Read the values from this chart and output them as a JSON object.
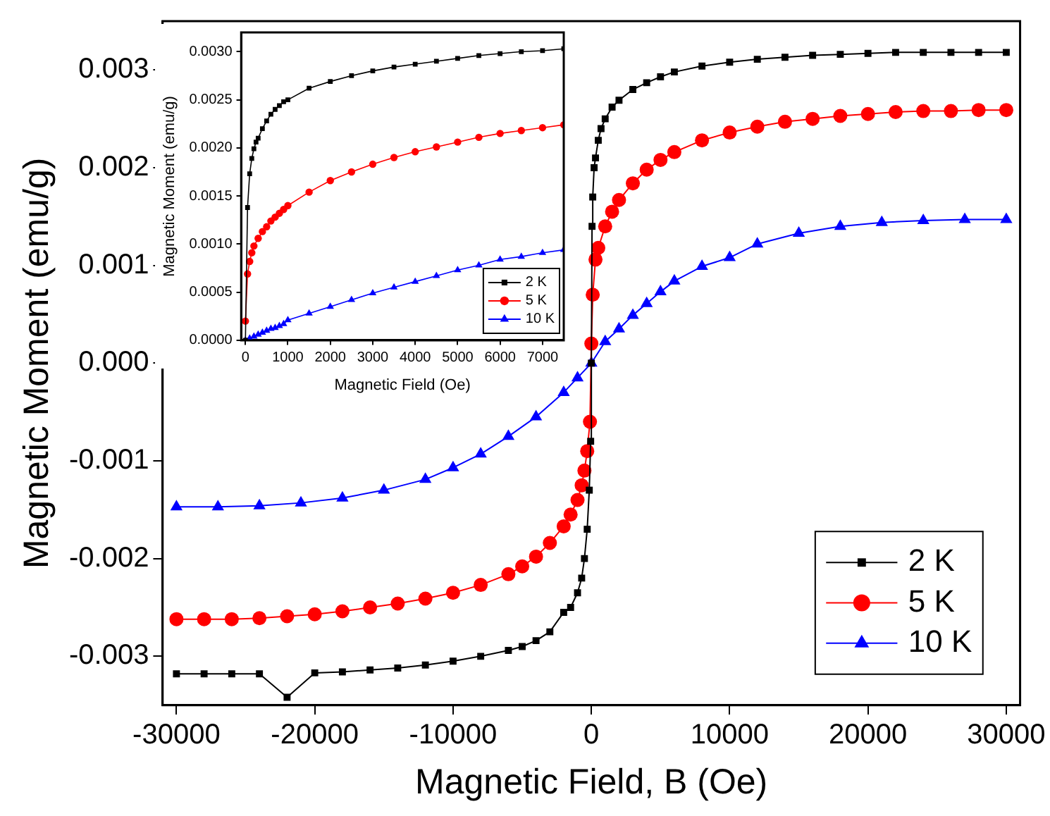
{
  "chart_data": [
    {
      "type": "line",
      "xlabel": "Magnetic Field, B (Oe)",
      "ylabel": "Magnetic Moment (emu/g)",
      "xlim": [
        -31000,
        31000
      ],
      "ylim": [
        -0.0035,
        0.0035
      ],
      "xticks": [
        -30000,
        -20000,
        -10000,
        0,
        10000,
        20000,
        30000
      ],
      "yticks": [
        {
          "value": -0.003,
          "label": "-0.003"
        },
        {
          "value": -0.002,
          "label": "-0.002"
        },
        {
          "value": -0.001,
          "label": "-0.001"
        },
        {
          "value": 0,
          "label": "0.000"
        },
        {
          "value": 0.001,
          "label": "0.001"
        },
        {
          "value": 0.002,
          "label": "0.002"
        },
        {
          "value": 0.003,
          "label": "0.003"
        }
      ],
      "grid": false,
      "legend": "bottom right",
      "line_style": "solid",
      "series": [
        {
          "name": "2 K",
          "color": "#000000",
          "marker": "square",
          "x": [
            -30000,
            -28000,
            -26000,
            -24000,
            -22000,
            -20000,
            -18000,
            -16000,
            -14000,
            -12000,
            -10000,
            -8000,
            -6000,
            -5000,
            -4000,
            -3000,
            -2000,
            -1500,
            -1000,
            -700,
            -500,
            -300,
            -150,
            -50,
            0,
            50,
            100,
            200,
            300,
            500,
            700,
            1000,
            1500,
            2000,
            3000,
            4000,
            5000,
            6000,
            8000,
            10000,
            12000,
            14000,
            16000,
            18000,
            20000,
            22000,
            24000,
            26000,
            28000,
            30000
          ],
          "values": [
            -0.00318,
            -0.00318,
            -0.00318,
            -0.00318,
            -0.00342,
            -0.00317,
            -0.00316,
            -0.00314,
            -0.00312,
            -0.00309,
            -0.00305,
            -0.003,
            -0.00294,
            -0.0029,
            -0.00284,
            -0.00275,
            -0.00255,
            -0.0025,
            -0.00235,
            -0.0022,
            -0.002,
            -0.0017,
            -0.0013,
            -0.0008,
            0,
            0.0014,
            0.0017,
            0.002,
            0.0021,
            0.00228,
            0.0024,
            0.0025,
            0.00262,
            0.00269,
            0.0028,
            0.00287,
            0.00293,
            0.00298,
            0.00304,
            0.00308,
            0.00311,
            0.00313,
            0.00315,
            0.00316,
            0.00317,
            0.00318,
            0.00318,
            0.00318,
            0.00318,
            0.00318
          ]
        },
        {
          "name": "5 K",
          "color": "#ff0000",
          "marker": "circle",
          "x": [
            -30000,
            -28000,
            -26000,
            -24000,
            -22000,
            -20000,
            -18000,
            -16000,
            -14000,
            -12000,
            -10000,
            -8000,
            -6000,
            -5000,
            -4000,
            -3000,
            -2000,
            -1500,
            -1000,
            -700,
            -500,
            -300,
            -100,
            0,
            100,
            300,
            500,
            1000,
            1500,
            2000,
            3000,
            4000,
            5000,
            6000,
            8000,
            10000,
            12000,
            14000,
            16000,
            18000,
            20000,
            22000,
            24000,
            26000,
            28000,
            30000
          ],
          "values": [
            -0.00262,
            -0.00262,
            -0.00262,
            -0.00261,
            -0.00259,
            -0.00257,
            -0.00254,
            -0.0025,
            -0.00246,
            -0.00241,
            -0.00235,
            -0.00227,
            -0.00216,
            -0.00208,
            -0.00198,
            -0.00184,
            -0.00167,
            -0.00155,
            -0.0014,
            -0.00125,
            -0.0011,
            -0.0009,
            -0.0006,
            0.0002,
            0.0007,
            0.00106,
            0.00118,
            0.0014,
            0.00155,
            0.00167,
            0.00184,
            0.00198,
            0.00208,
            0.00216,
            0.00228,
            0.00236,
            0.00242,
            0.00247,
            0.0025,
            0.00253,
            0.00255,
            0.00257,
            0.00258,
            0.00258,
            0.00259,
            0.00259
          ]
        },
        {
          "name": "10 K",
          "color": "#0000ff",
          "marker": "triangle",
          "x": [
            -30000,
            -27000,
            -24000,
            -21000,
            -18000,
            -15000,
            -12000,
            -10000,
            -8000,
            -6000,
            -4000,
            -2000,
            -1000,
            0,
            1000,
            2000,
            3000,
            4000,
            5000,
            6000,
            8000,
            10000,
            12000,
            15000,
            18000,
            21000,
            24000,
            27000,
            30000
          ],
          "values": [
            -0.00147,
            -0.00147,
            -0.00146,
            -0.00143,
            -0.00138,
            -0.0013,
            -0.00119,
            -0.00107,
            -0.00093,
            -0.00075,
            -0.00055,
            -0.0003,
            -0.00015,
            0,
            0.00022,
            0.00035,
            0.00049,
            0.00061,
            0.00073,
            0.00084,
            0.00099,
            0.00108,
            0.00122,
            0.00133,
            0.0014,
            0.00144,
            0.00146,
            0.00147,
            0.00147
          ]
        }
      ]
    },
    {
      "type": "line",
      "xlabel": "Magnetic Field (Oe)",
      "ylabel": "Magnetic Moment (emu/g)",
      "xlim": [
        -100,
        7500
      ],
      "ylim": [
        0,
        0.0032
      ],
      "xticks": [
        0,
        1000,
        2000,
        3000,
        4000,
        5000,
        6000,
        7000
      ],
      "yticks": [
        {
          "value": 0,
          "label": "0.0000"
        },
        {
          "value": 0.0005,
          "label": "0.0005"
        },
        {
          "value": 0.001,
          "label": "0.0010"
        },
        {
          "value": 0.0015,
          "label": "0.0015"
        },
        {
          "value": 0.002,
          "label": "0.0020"
        },
        {
          "value": 0.0025,
          "label": "0.0025"
        },
        {
          "value": 0.003,
          "label": "0.0030"
        }
      ],
      "grid": false,
      "legend": "bottom right",
      "line_style": "solid",
      "series": [
        {
          "name": "2 K",
          "color": "#000000",
          "marker": "square",
          "x": [
            0,
            50,
            100,
            150,
            200,
            250,
            300,
            400,
            500,
            600,
            700,
            800,
            900,
            1000,
            1500,
            2000,
            2500,
            3000,
            3500,
            4000,
            4500,
            5000,
            5500,
            6000,
            6500,
            7000,
            7500
          ],
          "values": [
            0,
            0.00138,
            0.00173,
            0.00189,
            0.00199,
            0.00206,
            0.0021,
            0.0022,
            0.00228,
            0.00235,
            0.0024,
            0.00244,
            0.00248,
            0.0025,
            0.00262,
            0.00269,
            0.00275,
            0.0028,
            0.00284,
            0.00287,
            0.0029,
            0.00293,
            0.00296,
            0.00298,
            0.003,
            0.00301,
            0.00303
          ]
        },
        {
          "name": "5 K",
          "color": "#ff0000",
          "marker": "circle",
          "x": [
            0,
            50,
            100,
            150,
            200,
            300,
            400,
            500,
            600,
            700,
            800,
            900,
            1000,
            1500,
            2000,
            2500,
            3000,
            3500,
            4000,
            4500,
            5000,
            5500,
            6000,
            6500,
            7000,
            7500
          ],
          "values": [
            0.0002,
            0.00069,
            0.00082,
            0.00091,
            0.00098,
            0.00106,
            0.00113,
            0.00118,
            0.00124,
            0.00128,
            0.00132,
            0.00136,
            0.0014,
            0.00154,
            0.00166,
            0.00175,
            0.00183,
            0.0019,
            0.00196,
            0.00201,
            0.00206,
            0.00211,
            0.00215,
            0.00218,
            0.00221,
            0.00224
          ]
        },
        {
          "name": "10 K",
          "color": "#0000ff",
          "marker": "triangle",
          "x": [
            0,
            100,
            200,
            300,
            400,
            500,
            600,
            700,
            800,
            900,
            1000,
            1500,
            2000,
            2500,
            3000,
            3500,
            4000,
            4500,
            5000,
            5500,
            6000,
            6500,
            7000,
            7500
          ],
          "values": [
            0,
            2e-05,
            4e-05,
            6e-05,
            8e-05,
            0.0001,
            0.00012,
            0.00013,
            0.00015,
            0.00017,
            0.00021,
            0.00028,
            0.00035,
            0.00042,
            0.00049,
            0.00055,
            0.00061,
            0.00067,
            0.00073,
            0.00078,
            0.00084,
            0.00087,
            0.00091,
            0.00094
          ]
        }
      ]
    }
  ]
}
